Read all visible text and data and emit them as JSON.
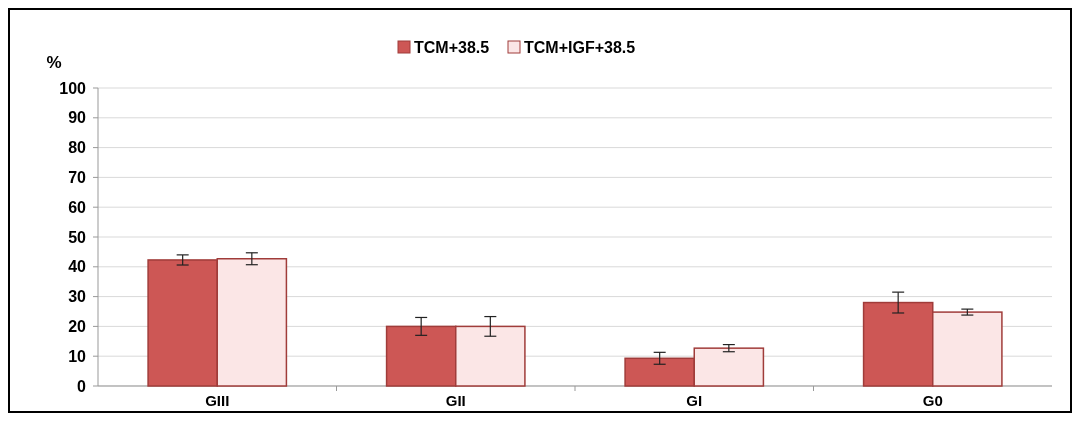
{
  "chart_data": {
    "type": "bar",
    "ylabel": "%",
    "categories": [
      "GIII",
      "GII",
      "GI",
      "G0"
    ],
    "series": [
      {
        "name": "TCM+38.5",
        "color": "#cd5755",
        "values": [
          42.3,
          20,
          9.3,
          28
        ],
        "errors": [
          1.7,
          3,
          2,
          3.5
        ]
      },
      {
        "name": "TCM+IGF+38.5",
        "color": "#fbe6e6",
        "values": [
          42.7,
          20,
          12.7,
          24.8
        ],
        "errors": [
          2,
          3.3,
          1.2,
          1
        ]
      }
    ],
    "ylim": [
      0,
      100
    ],
    "yticks": [
      0,
      10,
      20,
      30,
      40,
      50,
      60,
      70,
      80,
      90,
      100
    ],
    "grid": "y",
    "legend": "top"
  }
}
